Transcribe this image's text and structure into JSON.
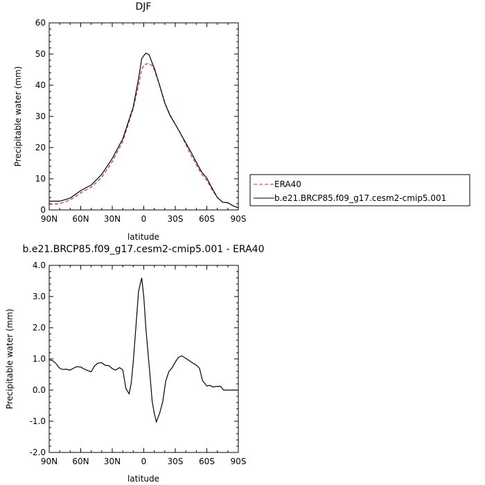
{
  "chart_data": [
    {
      "type": "line",
      "title": "DJF",
      "xlabel": "latitude",
      "ylabel": "Precipitable water (mm)",
      "xticks": [
        "90N",
        "60N",
        "30N",
        "0",
        "30S",
        "60S",
        "90S"
      ],
      "yticks": [
        "0",
        "10",
        "20",
        "30",
        "40",
        "50",
        "60"
      ],
      "xlim": [
        -90,
        90
      ],
      "ylim": [
        0,
        60
      ],
      "legend_position": "right",
      "series": [
        {
          "name": "ERA40",
          "color": "#d62728",
          "dash": "dashed",
          "x": [
            -90,
            -80,
            -70,
            -60,
            -50,
            -40,
            -30,
            -20,
            -10,
            -5,
            -2,
            0,
            2,
            5,
            8,
            10,
            15,
            20,
            25,
            30,
            35,
            40,
            45,
            50,
            55,
            60,
            65,
            70,
            75,
            80,
            85,
            90
          ],
          "y": [
            1.8,
            2.0,
            3.2,
            5.5,
            7.3,
            10.5,
            15.5,
            22.0,
            32.5,
            40.0,
            45.0,
            46.5,
            46.8,
            47.0,
            46.3,
            45.0,
            40.0,
            34.5,
            30.5,
            27.5,
            24.5,
            21.0,
            17.5,
            14.5,
            11.5,
            9.5,
            6.5,
            4.0,
            2.5,
            2.3,
            1.3,
            0.7
          ]
        },
        {
          "name": "b.e21.BRCP85.f09_g17.cesm2-cmip5.001",
          "color": "#000000",
          "dash": "solid",
          "x": [
            -90,
            -80,
            -70,
            -60,
            -50,
            -40,
            -30,
            -20,
            -10,
            -5,
            -2,
            0,
            2,
            5,
            8,
            10,
            15,
            20,
            25,
            30,
            35,
            40,
            45,
            50,
            55,
            60,
            65,
            70,
            75,
            80,
            85,
            90
          ],
          "y": [
            2.8,
            2.8,
            3.8,
            6.2,
            8.0,
            11.4,
            16.5,
            22.8,
            33.0,
            42.0,
            48.5,
            49.5,
            50.3,
            49.8,
            47.2,
            45.5,
            40.0,
            34.3,
            30.3,
            27.5,
            24.5,
            21.5,
            18.5,
            15.3,
            12.2,
            10.2,
            7.0,
            4.0,
            2.5,
            2.3,
            1.3,
            0.7
          ]
        }
      ]
    },
    {
      "type": "line",
      "title": "b.e21.BRCP85.f09_g17.cesm2-cmip5.001 - ERA40",
      "xlabel": "latitude",
      "ylabel": "Precipitable water (mm)",
      "xticks": [
        "90N",
        "60N",
        "30N",
        "0",
        "30S",
        "60S",
        "90S"
      ],
      "yticks": [
        "-2.0",
        "-1.0",
        "0.0",
        "1.0",
        "2.0",
        "3.0",
        "4.0"
      ],
      "xlim": [
        -90,
        90
      ],
      "ylim": [
        -2,
        4
      ],
      "series": [
        {
          "color": "#000000",
          "dash": "solid",
          "x": [
            -90,
            -87,
            -84,
            -80,
            -77,
            -74,
            -70,
            -67,
            -64,
            -60,
            -57,
            -53,
            -50,
            -47,
            -44,
            -40,
            -37,
            -33,
            -30,
            -27,
            -23,
            -20,
            -17,
            -14,
            -12,
            -10,
            -8,
            -5,
            -2,
            0,
            2,
            4,
            6,
            8,
            10,
            12,
            15,
            18,
            21,
            24,
            27,
            30,
            33,
            36,
            40,
            43,
            46,
            50,
            53,
            56,
            60,
            63,
            66,
            70,
            73,
            76,
            80,
            83,
            86,
            90
          ],
          "y": [
            0.97,
            0.95,
            0.87,
            0.7,
            0.66,
            0.67,
            0.64,
            0.7,
            0.75,
            0.74,
            0.68,
            0.62,
            0.59,
            0.77,
            0.86,
            0.88,
            0.8,
            0.78,
            0.69,
            0.64,
            0.72,
            0.65,
            0.05,
            -0.12,
            0.2,
            0.9,
            1.8,
            3.15,
            3.6,
            3.0,
            2.0,
            1.2,
            0.45,
            -0.35,
            -0.75,
            -1.02,
            -0.75,
            -0.38,
            0.3,
            0.6,
            0.72,
            0.9,
            1.05,
            1.1,
            1.02,
            0.95,
            0.88,
            0.8,
            0.7,
            0.3,
            0.13,
            0.15,
            0.1,
            0.12,
            0.12,
            0.0,
            0.0,
            0.0,
            0.0,
            0.0
          ]
        }
      ]
    }
  ]
}
